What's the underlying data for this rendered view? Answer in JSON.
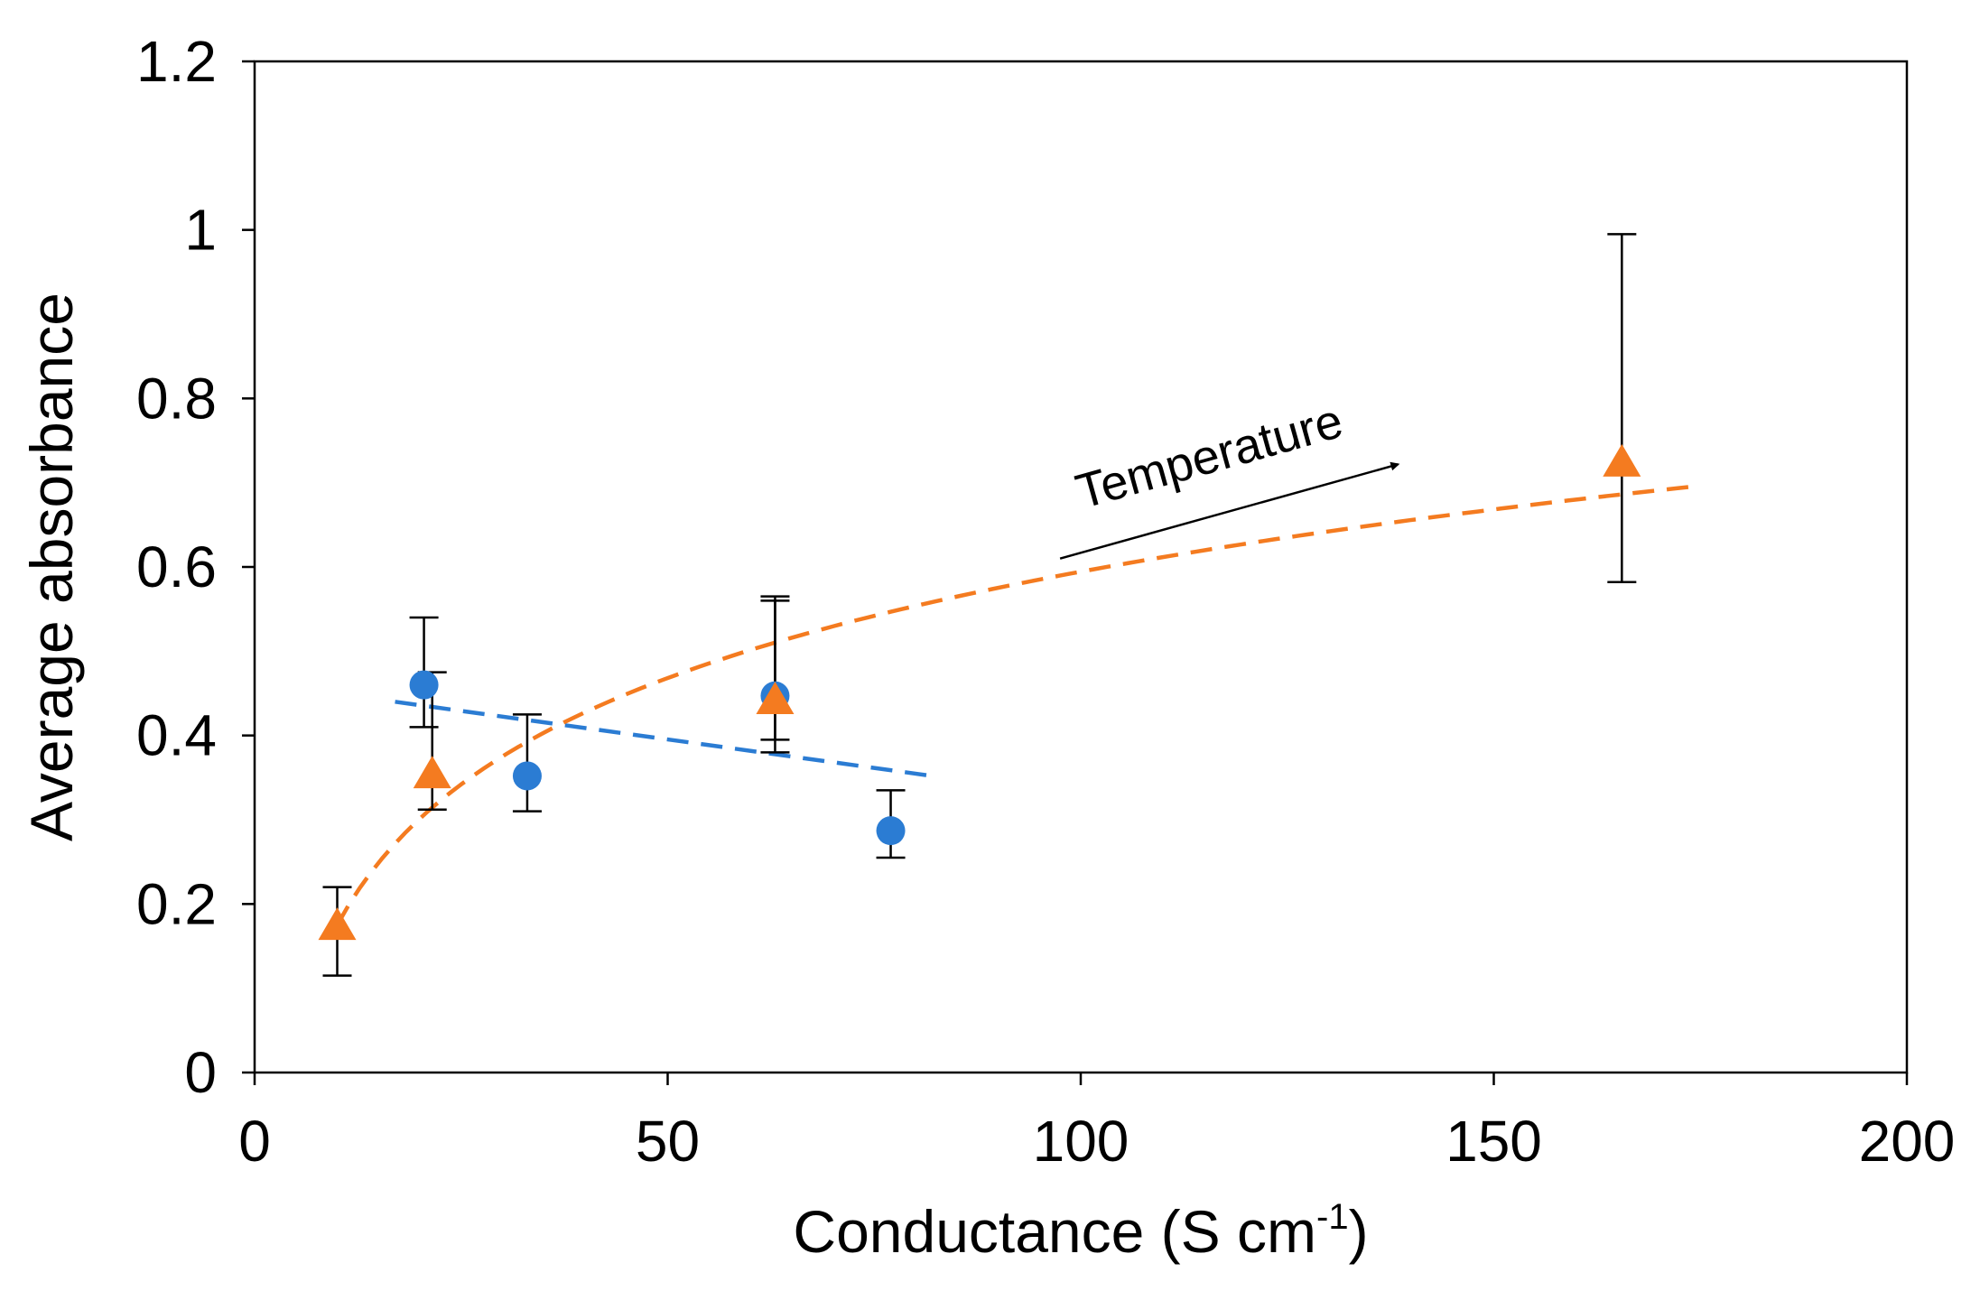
{
  "chart_data": {
    "type": "scatter",
    "xlabel": "Conductance (S cm",
    "xlabel_superscript": "-1",
    "xlabel_suffix": ")",
    "ylabel": "Average absorbance",
    "xlim": [
      0,
      200
    ],
    "ylim": [
      0,
      1.2
    ],
    "xticks": [
      0,
      50,
      100,
      150,
      200
    ],
    "xtick_labels": [
      "0",
      "50",
      "100",
      "150",
      "200"
    ],
    "yticks": [
      0,
      0.2,
      0.4,
      0.6,
      0.8,
      1.0,
      1.2
    ],
    "ytick_labels": [
      "0",
      "0.2",
      "0.4",
      "0.6",
      "0.8",
      "1",
      "1.2"
    ],
    "grid": false,
    "series": [
      {
        "name": "circles",
        "marker": "circle",
        "color": "#2B7CD3",
        "points": [
          {
            "x": 20.5,
            "y": 0.46,
            "err_low": 0.41,
            "err_high": 0.54
          },
          {
            "x": 33,
            "y": 0.352,
            "err_low": 0.31,
            "err_high": 0.425
          },
          {
            "x": 63,
            "y": 0.447,
            "err_low": 0.38,
            "err_high": 0.56
          },
          {
            "x": 77,
            "y": 0.287,
            "err_low": 0.255,
            "err_high": 0.335
          }
        ],
        "trendline": {
          "style": "dashed",
          "color": "#2B7CD3",
          "x": [
            17,
            82
          ],
          "y": [
            0.44,
            0.352
          ]
        }
      },
      {
        "name": "triangles",
        "marker": "triangle",
        "color": "#F47B20",
        "points": [
          {
            "x": 10,
            "y": 0.172,
            "err_low": 0.115,
            "err_high": 0.22
          },
          {
            "x": 21.5,
            "y": 0.352,
            "err_low": 0.312,
            "err_high": 0.475
          },
          {
            "x": 63,
            "y": 0.44,
            "err_low": 0.395,
            "err_high": 0.565
          },
          {
            "x": 165.5,
            "y": 0.722,
            "err_low": 0.582,
            "err_high": 0.995
          }
        ],
        "trendline": {
          "style": "dashed",
          "color": "#F47B20",
          "type": "log",
          "x_range": [
            10,
            174
          ]
        }
      }
    ],
    "annotations": [
      {
        "text": "Temperature",
        "arrow": {
          "from": [
            97.5,
            0.61
          ],
          "to": [
            139.5,
            0.725
          ]
        }
      }
    ]
  }
}
